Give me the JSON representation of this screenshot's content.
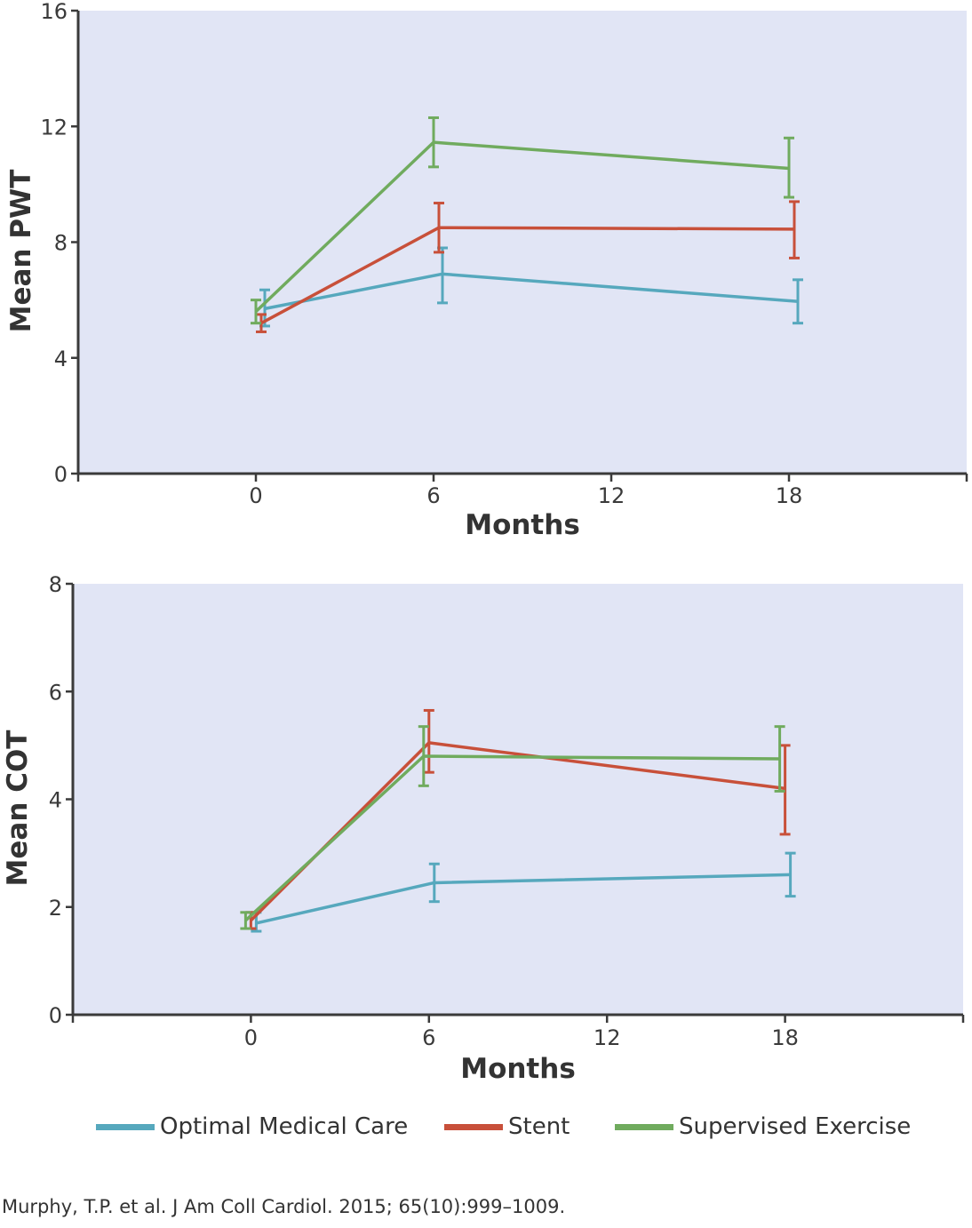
{
  "chart_data": [
    {
      "type": "line",
      "xlabel": "Months",
      "ylabel": "Mean PWT",
      "xticks": [
        0,
        6,
        12,
        18
      ],
      "yticks": [
        0,
        4,
        8,
        12,
        16
      ],
      "xlim": [
        -6,
        24
      ],
      "ylim": [
        0,
        16
      ],
      "background": "#e1e5f5",
      "series": [
        {
          "name": "Optimal Medical Care",
          "color": "#56a8bd",
          "x": [
            0,
            6,
            18
          ],
          "y": [
            5.7,
            6.9,
            5.95
          ],
          "err_low": [
            5.1,
            5.9,
            5.2
          ],
          "err_high": [
            6.35,
            7.8,
            6.7
          ]
        },
        {
          "name": "Stent",
          "color": "#c8503a",
          "x": [
            0,
            6,
            18
          ],
          "y": [
            5.2,
            8.5,
            8.45
          ],
          "err_low": [
            4.9,
            7.65,
            7.45
          ],
          "err_high": [
            5.5,
            9.35,
            9.4
          ]
        },
        {
          "name": "Supervised Exercise",
          "color": "#70ab5e",
          "x": [
            0,
            6,
            18
          ],
          "y": [
            5.6,
            11.45,
            10.55
          ],
          "err_low": [
            5.2,
            10.6,
            9.55
          ],
          "err_high": [
            6.0,
            12.3,
            11.6
          ]
        }
      ]
    },
    {
      "type": "line",
      "xlabel": "Months",
      "ylabel": "Mean COT",
      "xticks": [
        0,
        6,
        12,
        18
      ],
      "yticks": [
        0,
        2,
        4,
        6,
        8
      ],
      "xlim": [
        -6,
        24
      ],
      "ylim": [
        0,
        8
      ],
      "background": "#e1e5f5",
      "series": [
        {
          "name": "Optimal Medical Care",
          "color": "#56a8bd",
          "x": [
            0,
            6,
            18
          ],
          "y": [
            1.7,
            2.45,
            2.6
          ],
          "err_low": [
            1.55,
            2.1,
            2.2
          ],
          "err_high": [
            1.9,
            2.8,
            3.0
          ]
        },
        {
          "name": "Stent",
          "color": "#c8503a",
          "x": [
            0,
            6,
            18
          ],
          "y": [
            1.75,
            5.05,
            4.2
          ],
          "err_low": [
            1.6,
            4.5,
            3.35
          ],
          "err_high": [
            1.9,
            5.65,
            5.0
          ]
        },
        {
          "name": "Supervised Exercise",
          "color": "#70ab5e",
          "x": [
            0,
            6,
            18
          ],
          "y": [
            1.75,
            4.8,
            4.75
          ],
          "err_low": [
            1.6,
            4.25,
            4.15
          ],
          "err_high": [
            1.9,
            5.35,
            5.35
          ]
        }
      ]
    }
  ],
  "legend": [
    {
      "label": "Optimal Medical Care",
      "color": "#56a8bd"
    },
    {
      "label": "Stent",
      "color": "#c8503a"
    },
    {
      "label": "Supervised Exercise",
      "color": "#70ab5e"
    }
  ],
  "citation": "Murphy, T.P. et al. J Am Coll Cardiol. 2015; 65(10):999–1009."
}
